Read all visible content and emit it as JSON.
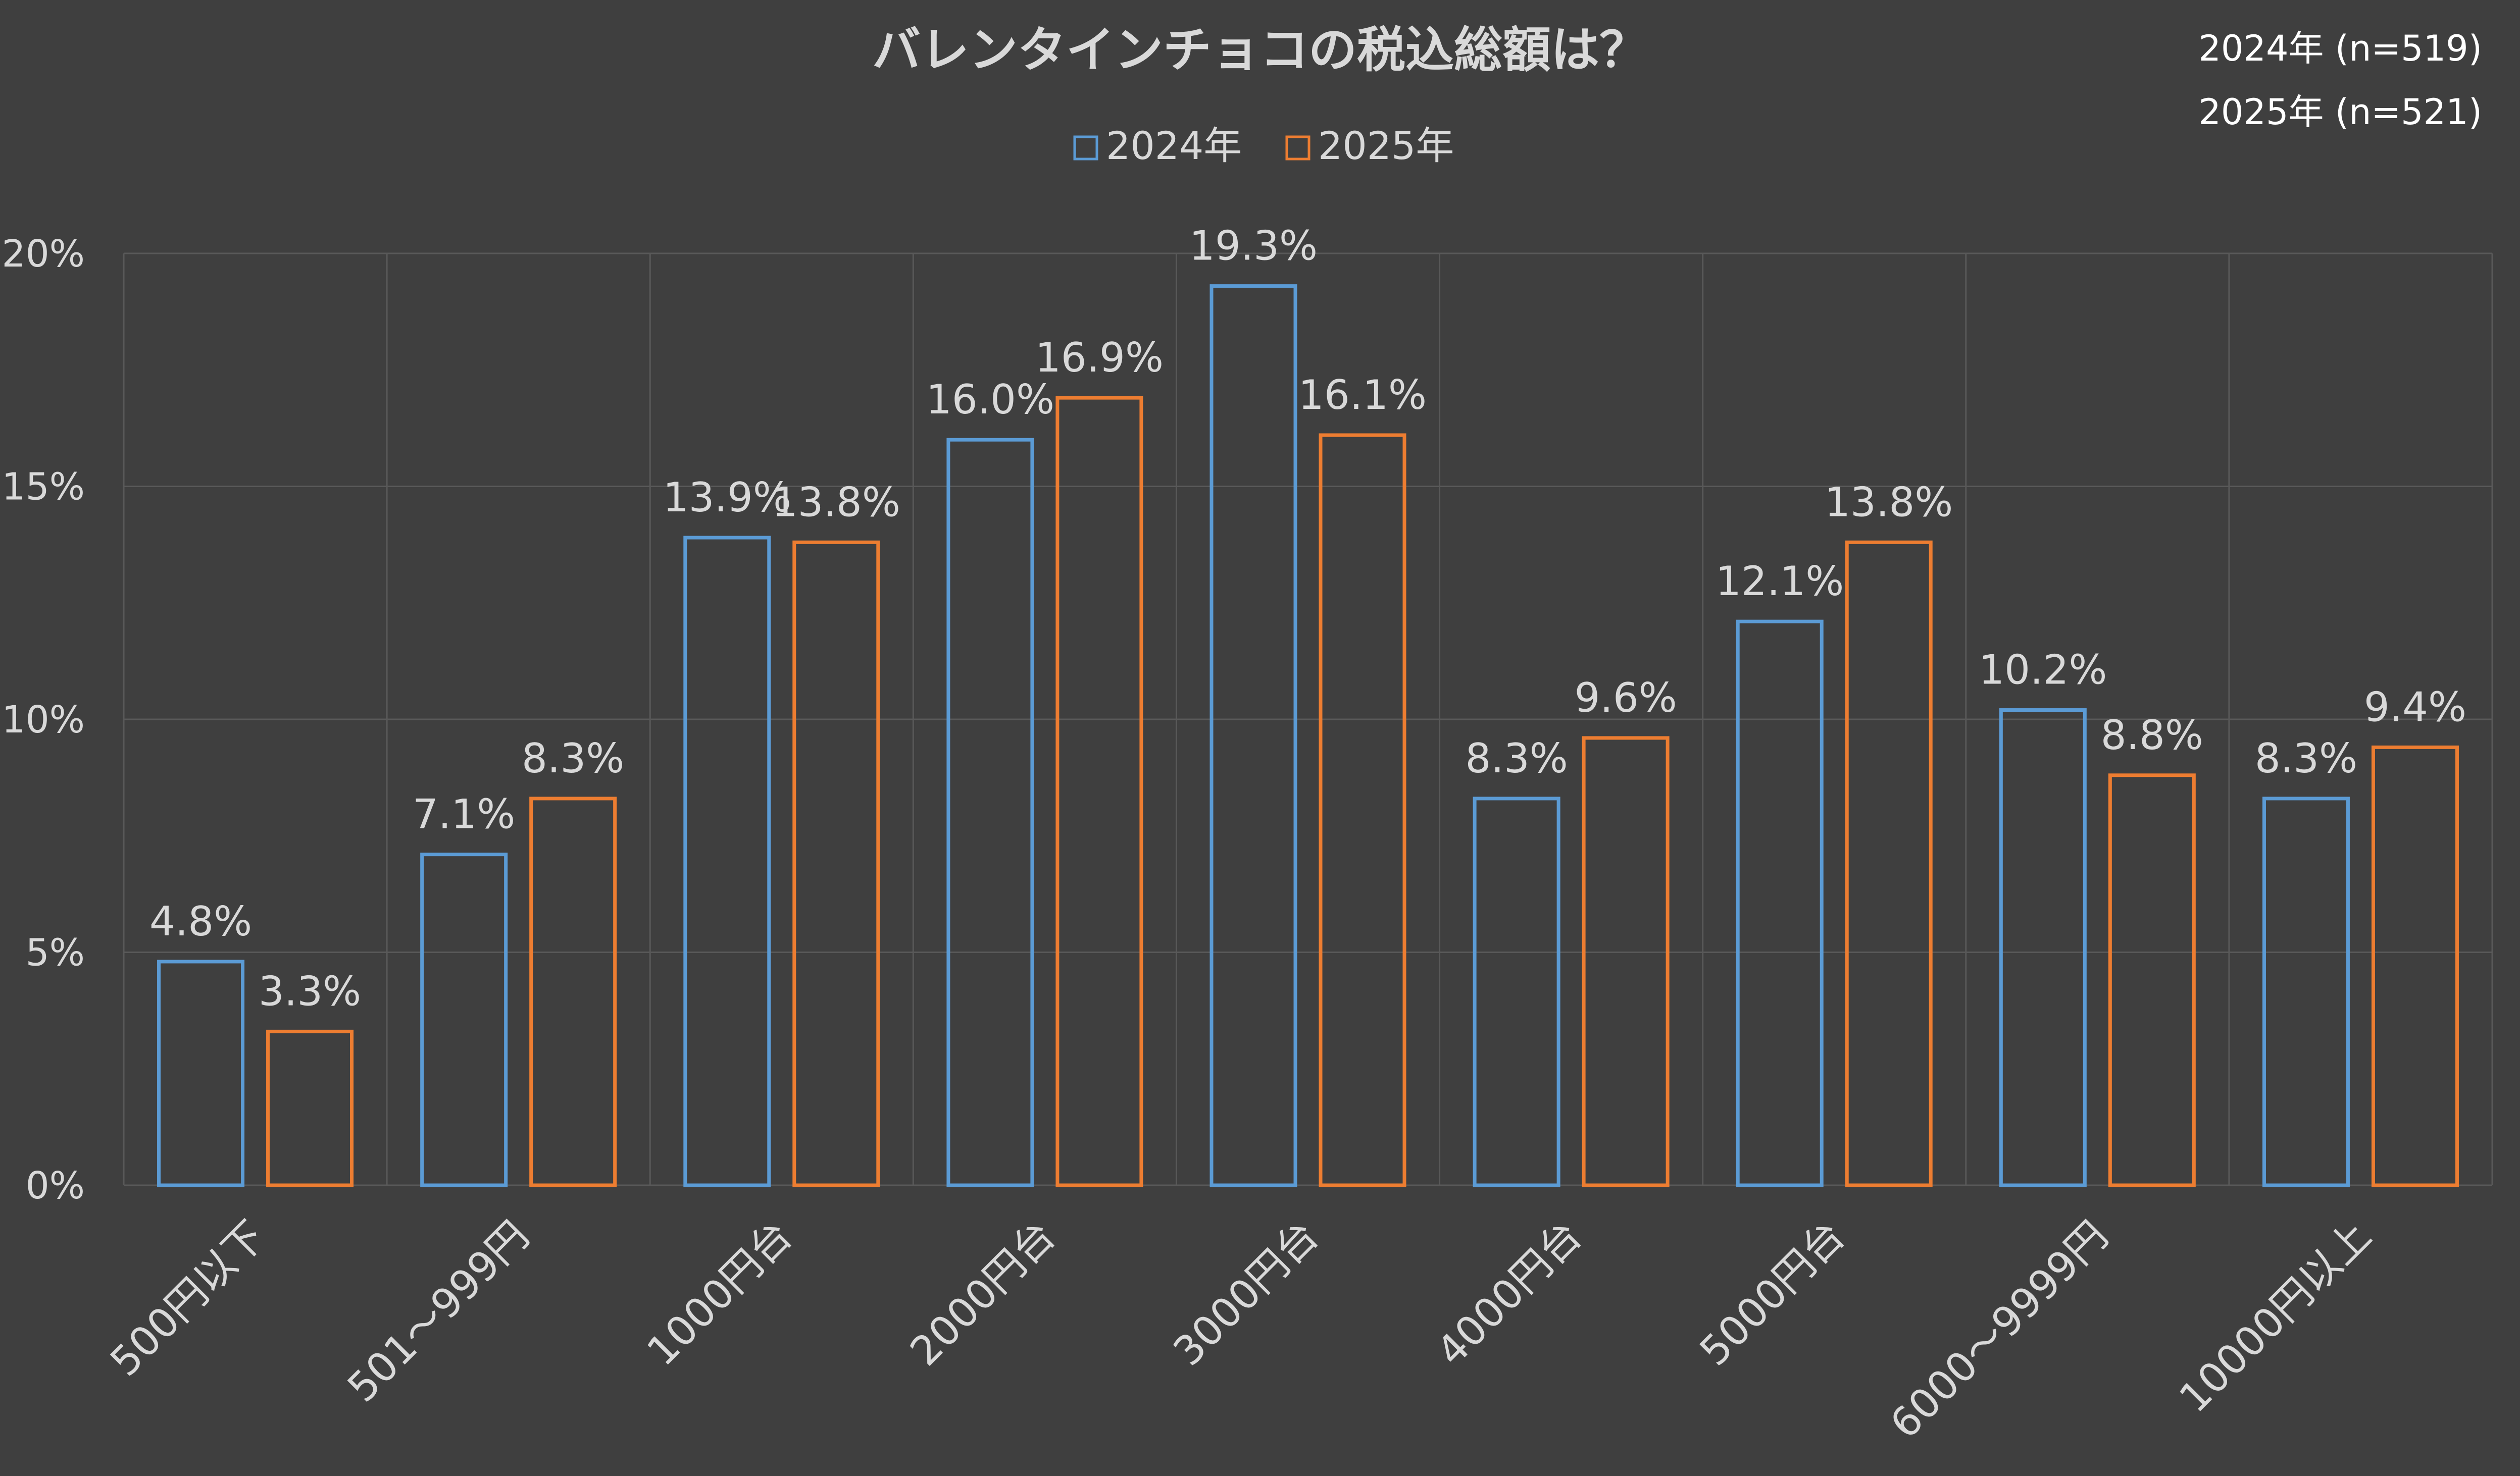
{
  "chart_data": {
    "type": "bar",
    "title": "バレンタインチョコの税込総額は？",
    "notes": [
      "2024年 (n=519)",
      "2025年 (n=521)"
    ],
    "categories": [
      "500円以下",
      "501～999円",
      "1000円台",
      "2000円台",
      "3000円台",
      "4000円台",
      "5000円台",
      "6000～9999円",
      "10000円以上"
    ],
    "series": [
      {
        "name": "2024年",
        "values": [
          4.8,
          7.1,
          13.9,
          16.0,
          19.3,
          8.3,
          12.1,
          10.2,
          8.3
        ],
        "labels": [
          "4.8%",
          "7.1%",
          "13.9%",
          "16.0%",
          "19.3%",
          "8.3%",
          "12.1%",
          "10.2%",
          "8.3%"
        ]
      },
      {
        "name": "2025年",
        "values": [
          3.3,
          8.3,
          13.8,
          16.9,
          16.1,
          9.6,
          13.8,
          8.8,
          9.4
        ],
        "labels": [
          "3.3%",
          "8.3%",
          "13.8%",
          "16.9%",
          "16.1%",
          "9.6%",
          "13.8%",
          "8.8%",
          "9.4%"
        ]
      }
    ],
    "yticks": [
      "0%",
      "5%",
      "10%",
      "15%",
      "20%"
    ],
    "ylim": [
      0,
      20
    ],
    "xlabel": "",
    "ylabel": "",
    "legend_position": "top-center",
    "grid": true
  },
  "colors": {
    "background": "#3f3f3f",
    "grid": "#595959",
    "text": "#d9d9d9",
    "series": [
      "#5b9bd5",
      "#ed7d31"
    ]
  }
}
